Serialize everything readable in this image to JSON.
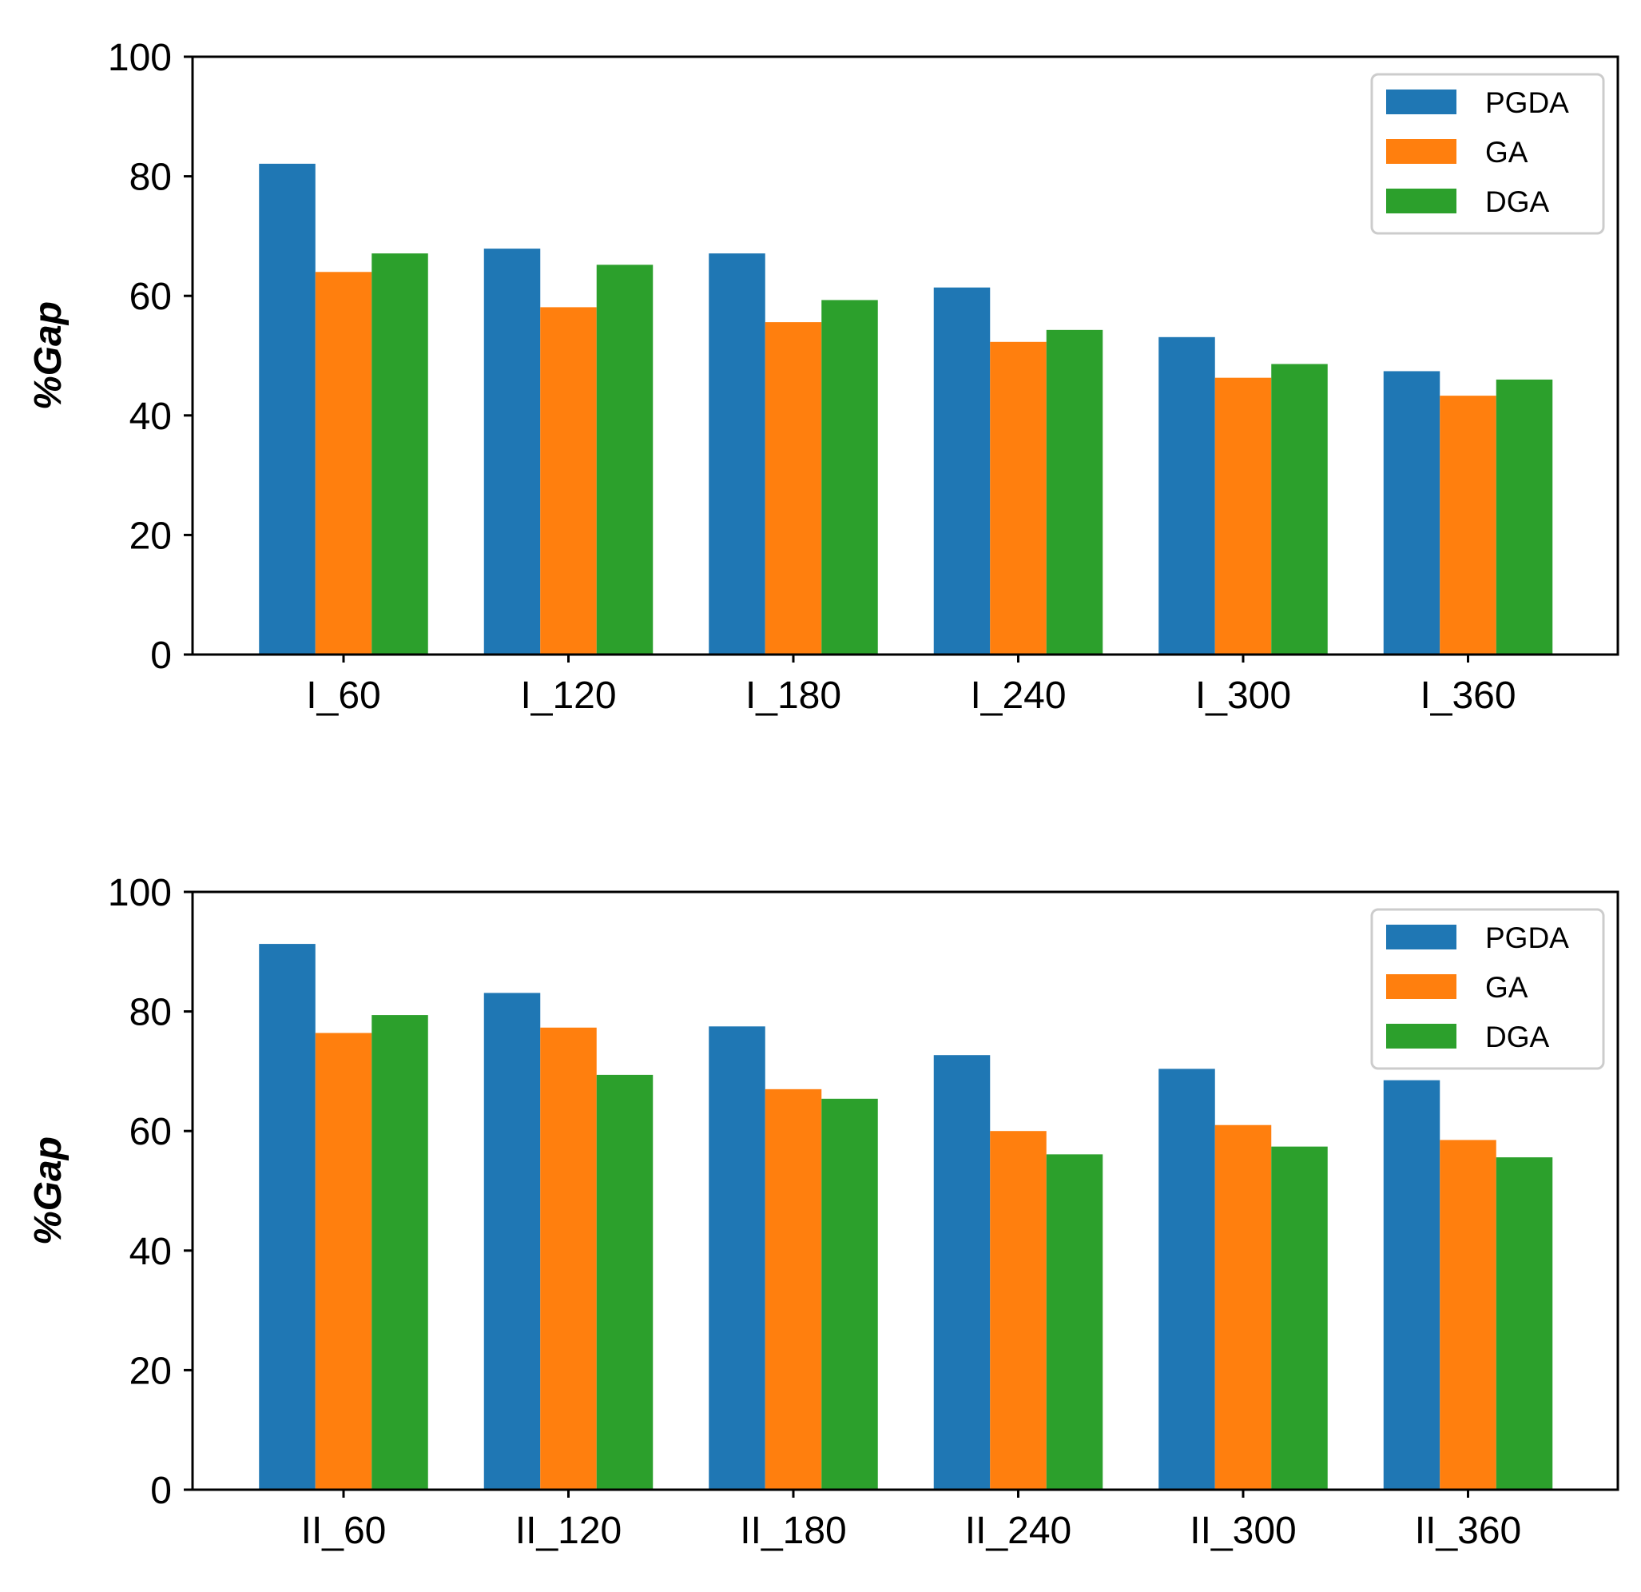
{
  "chart_data": [
    {
      "type": "bar",
      "title": "",
      "xlabel": "",
      "ylabel": "%Gap",
      "ylim": [
        0,
        100
      ],
      "yticks": [
        "0",
        "20",
        "40",
        "60",
        "80",
        "100"
      ],
      "legend_position": "top-right",
      "grid": false,
      "categories": [
        "I_60",
        "I_120",
        "I_180",
        "I_240",
        "I_300",
        "I_360"
      ],
      "series": [
        {
          "name": "PGDA",
          "color": "#1f77b4",
          "values": [
            82.1,
            67.9,
            67.1,
            61.4,
            53.1,
            47.4
          ]
        },
        {
          "name": "GA",
          "color": "#ff7f0e",
          "values": [
            64.0,
            58.1,
            55.6,
            52.3,
            46.3,
            43.3
          ]
        },
        {
          "name": "DGA",
          "color": "#2ca02c",
          "values": [
            67.1,
            65.2,
            59.3,
            54.3,
            48.6,
            46.0
          ]
        }
      ]
    },
    {
      "type": "bar",
      "title": "",
      "xlabel": "",
      "ylabel": "%Gap",
      "ylim": [
        0,
        100
      ],
      "yticks": [
        "0",
        "20",
        "40",
        "60",
        "80",
        "100"
      ],
      "legend_position": "top-right",
      "grid": false,
      "categories": [
        "II_60",
        "II_120",
        "II_180",
        "II_240",
        "II_300",
        "II_360"
      ],
      "series": [
        {
          "name": "PGDA",
          "color": "#1f77b4",
          "values": [
            91.3,
            83.1,
            77.5,
            72.7,
            70.4,
            68.5
          ]
        },
        {
          "name": "GA",
          "color": "#ff7f0e",
          "values": [
            76.4,
            77.3,
            67.0,
            60.0,
            61.0,
            58.5
          ]
        },
        {
          "name": "DGA",
          "color": "#2ca02c",
          "values": [
            79.4,
            69.4,
            65.4,
            56.1,
            57.4,
            55.6
          ]
        }
      ]
    }
  ]
}
